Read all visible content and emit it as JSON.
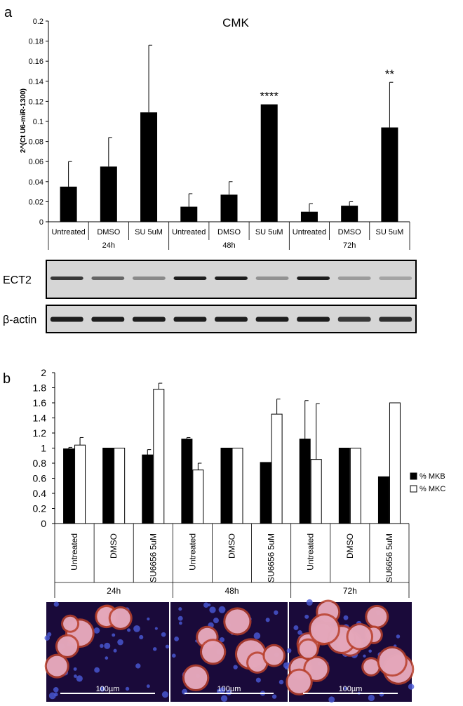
{
  "panel_a": {
    "label": "a",
    "blots": [
      {
        "name": "ECT2",
        "intensities": [
          0.8,
          0.55,
          0.35,
          0.95,
          0.95,
          0.3,
          0.95,
          0.25,
          0.2
        ]
      },
      {
        "name": "β-actin",
        "intensities": [
          0.95,
          0.95,
          0.95,
          0.95,
          0.95,
          0.95,
          0.95,
          0.8,
          0.85
        ]
      }
    ]
  },
  "panel_b": {
    "label": "b",
    "images": [
      {
        "scale_bar": "100µm"
      },
      {
        "scale_bar": "100µm"
      },
      {
        "scale_bar": "100µm"
      }
    ]
  },
  "colors": {
    "bar_fill": "#000000",
    "open_bar_fill": "#ffffff",
    "image_bg": "#1a0a3a",
    "cell_fill": "#e8b0c8"
  },
  "chart_data": [
    {
      "type": "bar",
      "title": "CMK",
      "ylabel": "2^(Ct U6-miR-1300)",
      "ylim": [
        0,
        0.2
      ],
      "yticks": [
        "0",
        "0.02",
        "0.04",
        "0.06",
        "0.08",
        "0.1",
        "0.12",
        "0.14",
        "0.16",
        "0.18",
        "0.2"
      ],
      "categories": [
        "Untreated",
        "DMSO",
        "SU 5uM",
        "Untreated",
        "DMSO",
        "SU 5uM",
        "Untreated",
        "DMSO",
        "SU 5uM"
      ],
      "groups": [
        "24h",
        "48h",
        "72h"
      ],
      "values": [
        0.035,
        0.055,
        0.109,
        0.015,
        0.027,
        0.117,
        0.01,
        0.016,
        0.094
      ],
      "errors": [
        0.025,
        0.029,
        0.067,
        0.013,
        0.013,
        0.0,
        0.008,
        0.004,
        0.045
      ],
      "annotations": [
        "",
        "",
        "",
        "",
        "",
        "****",
        "",
        "",
        "**"
      ]
    },
    {
      "type": "bar",
      "ylim": [
        0,
        2
      ],
      "yticks": [
        "0",
        "0.2",
        "0.4",
        "0.6",
        "0.8",
        "1",
        "1.2",
        "1.4",
        "1.6",
        "1.8",
        "2"
      ],
      "categories": [
        "Untreated",
        "DMSO",
        "SU6656 5uM",
        "Untreated",
        "DMSO",
        "SU6656 5uM",
        "Untreated",
        "DMSO",
        "SU6656 5uM"
      ],
      "groups": [
        "24h",
        "48h",
        "72h"
      ],
      "series": [
        {
          "name": "% MKB",
          "values": [
            0.99,
            1.0,
            0.91,
            1.12,
            1.0,
            0.81,
            1.12,
            1.0,
            0.62
          ],
          "errors": [
            0.02,
            0.0,
            0.07,
            0.02,
            0.0,
            0.0,
            0.51,
            0.0,
            0.0
          ]
        },
        {
          "name": "% MKC",
          "values": [
            1.04,
            1.0,
            1.78,
            0.71,
            1.0,
            1.45,
            0.85,
            1.0,
            1.6
          ],
          "errors": [
            0.1,
            0.0,
            0.08,
            0.09,
            0.0,
            0.2,
            0.74,
            0.0,
            0.0
          ]
        }
      ]
    }
  ]
}
